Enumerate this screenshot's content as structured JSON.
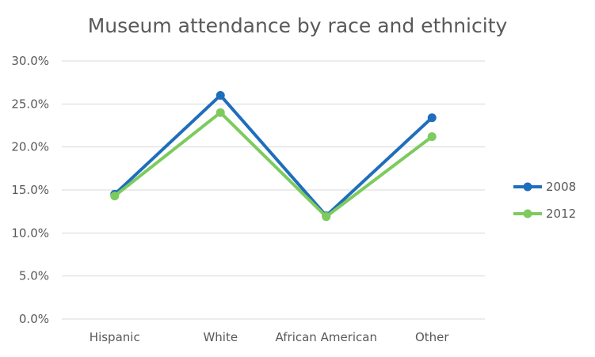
{
  "chart_data": {
    "type": "line",
    "title": "Museum attendance by race and ethnicity",
    "categories": [
      "Hispanic",
      "White",
      "African American",
      "Other"
    ],
    "ylim": [
      0,
      30
    ],
    "yticks": [
      "0.0%",
      "5.0%",
      "10.0%",
      "15.0%",
      "20.0%",
      "25.0%",
      "30.0%"
    ],
    "ytick_values": [
      0,
      5,
      10,
      15,
      20,
      25,
      30
    ],
    "y_unit": "%",
    "grid": true,
    "legend_position": "right",
    "series": [
      {
        "name": "2008",
        "color": "#1F6EBD",
        "values": [
          14.5,
          26.0,
          12.0,
          23.4
        ]
      },
      {
        "name": "2012",
        "color": "#7DCB5E",
        "values": [
          14.3,
          24.0,
          11.9,
          21.2
        ]
      }
    ]
  }
}
